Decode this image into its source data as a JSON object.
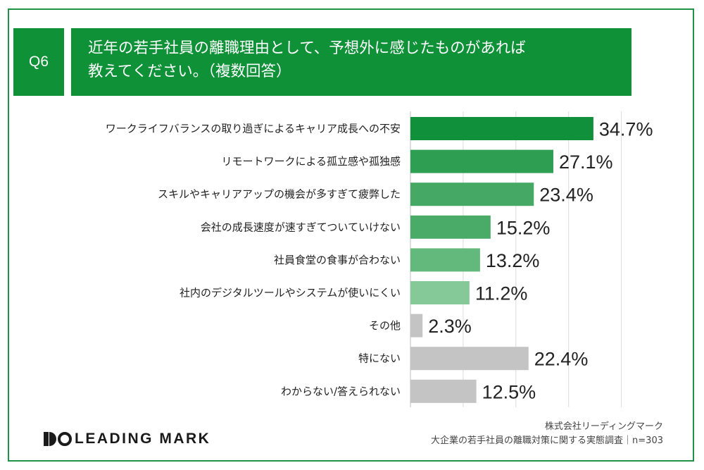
{
  "question": {
    "number": "Q6",
    "title_line1": "近年の若手社員の離職理由として、予想外に感じたものがあれば",
    "title_line2": "教えてください。（複数回答）"
  },
  "chart_data": {
    "type": "bar",
    "orientation": "horizontal",
    "categories": [
      "ワークライフバランスの取り過ぎによるキャリア成長への不安",
      "リモートワークによる孤立感や孤独感",
      "スキルやキャリアアップの機会が多すぎて疲弊した",
      "会社の成長速度が速すぎてついていけない",
      "社員食堂の食事が合わない",
      "社内のデジタルツールやシステムが使いにくい",
      "その他",
      "特にない",
      "わからない/答えられない"
    ],
    "values": [
      34.7,
      27.1,
      23.4,
      15.2,
      13.2,
      11.2,
      2.3,
      22.4,
      12.5
    ],
    "value_labels": [
      "34.7%",
      "27.1%",
      "23.4%",
      "15.2%",
      "13.2%",
      "11.2%",
      "2.3%",
      "22.4%",
      "12.5%"
    ],
    "bar_colors": [
      "#10903a",
      "#2e9f52",
      "#45a965",
      "#4aab68",
      "#63b97c",
      "#86c998",
      "#c4c4c4",
      "#c4c4c4",
      "#c4c4c4"
    ],
    "xlim": [
      0,
      40
    ],
    "grid": true,
    "unit": "%"
  },
  "brand": {
    "logo_text": "LEADING MARK",
    "accent_color": "#0f9138"
  },
  "source": {
    "company": "株式会社リーディングマーク",
    "survey": "大企業の若手社員の離職対策に関する実態調査｜n=303"
  }
}
